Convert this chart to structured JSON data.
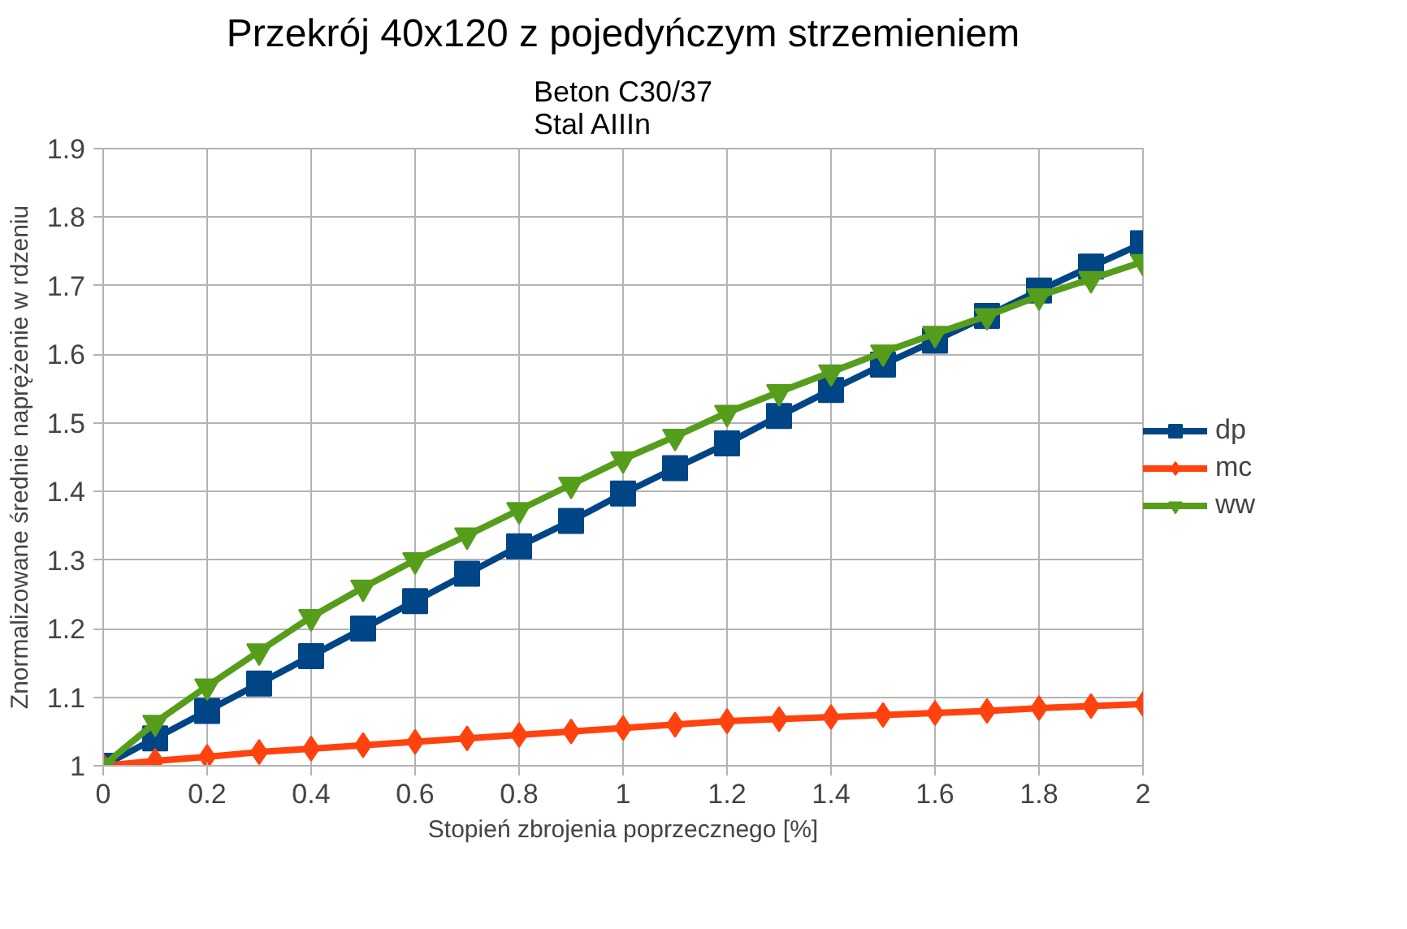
{
  "chart_data": {
    "type": "line",
    "title": "Przekrój 40x120 z pojedyńczym strzemieniem",
    "subtitle": "Beton C30/37\nStal  AIIIn",
    "xlabel": "Stopień zbrojenia poprzecznego [%]",
    "ylabel": "Znormalizowane średnie naprężenie w rdzeniu",
    "x": [
      0,
      0.1,
      0.2,
      0.3,
      0.4,
      0.5,
      0.6,
      0.7,
      0.8,
      0.9,
      1.0,
      1.1,
      1.2,
      1.3,
      1.4,
      1.5,
      1.6,
      1.7,
      1.8,
      1.9,
      2.0
    ],
    "series": [
      {
        "name": "dp",
        "color": "#004586",
        "marker": "square",
        "values": [
          1.0,
          1.04,
          1.08,
          1.12,
          1.16,
          1.2,
          1.24,
          1.28,
          1.32,
          1.357,
          1.397,
          1.434,
          1.47,
          1.51,
          1.548,
          1.585,
          1.62,
          1.656,
          1.693,
          1.728,
          1.762
        ]
      },
      {
        "name": "mc",
        "color": "#ff420e",
        "marker": "diamond",
        "values": [
          1.0,
          1.007,
          1.013,
          1.02,
          1.025,
          1.03,
          1.035,
          1.04,
          1.045,
          1.05,
          1.055,
          1.06,
          1.065,
          1.068,
          1.071,
          1.074,
          1.077,
          1.08,
          1.084,
          1.087,
          1.09
        ]
      },
      {
        "name": "ww",
        "color": "#579d1c",
        "marker": "triangle",
        "values": [
          1.0,
          1.063,
          1.116,
          1.167,
          1.217,
          1.26,
          1.3,
          1.336,
          1.373,
          1.41,
          1.447,
          1.48,
          1.515,
          1.545,
          1.574,
          1.603,
          1.63,
          1.656,
          1.685,
          1.71,
          1.735
        ]
      }
    ],
    "xlim": [
      0,
      2
    ],
    "xticks": [
      0,
      0.2,
      0.4,
      0.6,
      0.8,
      1,
      1.2,
      1.4,
      1.6,
      1.8,
      2
    ],
    "ylim": [
      1,
      1.9
    ],
    "yticks": [
      1,
      1.1,
      1.2,
      1.3,
      1.4,
      1.5,
      1.6,
      1.7,
      1.8,
      1.9
    ],
    "grid": true,
    "legend": "right",
    "line_style": "solid"
  }
}
